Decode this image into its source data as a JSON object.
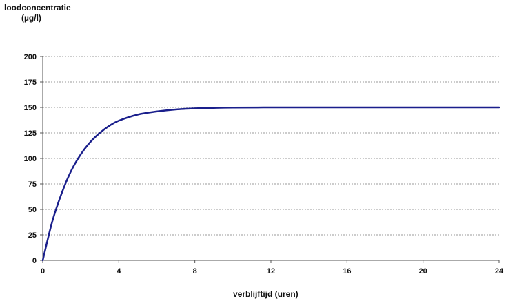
{
  "chart_data": {
    "type": "line",
    "ylabel_line1": "loodconcentratie",
    "ylabel_line2": "(µg/l)",
    "xlabel": "verblijftijd (uren)",
    "xlim": [
      0,
      24
    ],
    "ylim": [
      0,
      200
    ],
    "xticks": [
      0,
      4,
      8,
      12,
      16,
      20,
      24
    ],
    "yticks": [
      0,
      25,
      50,
      75,
      100,
      125,
      150,
      175,
      200
    ],
    "grid": "horizontal dashed",
    "series": [
      {
        "color": "#1a1f8c",
        "x": [
          0,
          0.5,
          1,
          1.5,
          2,
          2.5,
          3,
          3.5,
          4,
          5,
          6,
          7,
          8,
          9,
          10,
          12,
          14,
          16,
          18,
          20,
          22,
          24
        ],
        "y": [
          0,
          38,
          66,
          88,
          104,
          116,
          125,
          132,
          137,
          143,
          146,
          148,
          149,
          149.5,
          149.8,
          150,
          150,
          150,
          150,
          150,
          150,
          150
        ]
      }
    ]
  }
}
